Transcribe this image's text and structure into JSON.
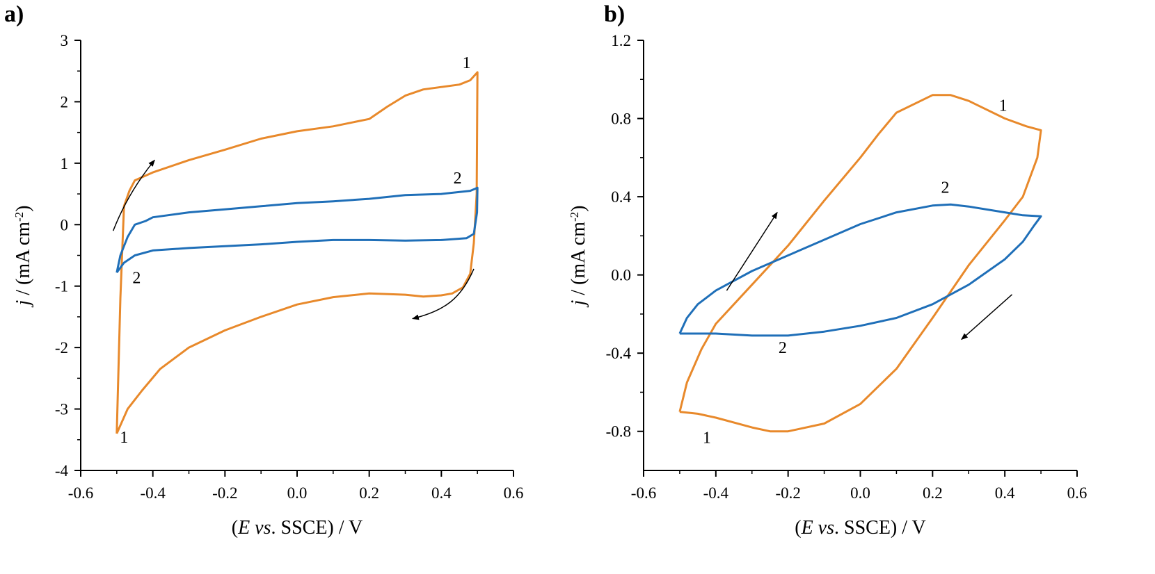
{
  "panels": {
    "a": "a)",
    "b": "b)"
  },
  "chart_data": [
    {
      "type": "line",
      "panel": "a)",
      "xlabel": "(E vs. SSCE) / V",
      "ylabel": "j / (mA cm-2)",
      "xlim": [
        -0.6,
        0.6
      ],
      "ylim": [
        -4,
        3
      ],
      "xticks": [
        -0.6,
        -0.4,
        -0.2,
        0.0,
        0.2,
        0.4,
        0.6
      ],
      "xtick_labels": [
        "-0.6",
        "-0.4",
        "-0.2",
        "0.0",
        "0.2",
        "0.4",
        "0.6"
      ],
      "yticks": [
        -4,
        -3,
        -2,
        -1,
        0,
        1,
        2,
        3
      ],
      "ytick_labels": [
        "-4",
        "-3",
        "-2",
        "-1",
        "0",
        "1",
        "2",
        "3"
      ],
      "grid": false,
      "colors": {
        "1": "#E8892B",
        "2": "#1F6FB8"
      },
      "series": [
        {
          "label": "1",
          "color": "#E8892B",
          "points": [
            [
              -0.5,
              -3.4
            ],
            [
              -0.49,
              -1.2
            ],
            [
              -0.48,
              0.3
            ],
            [
              -0.465,
              0.55
            ],
            [
              -0.45,
              0.72
            ],
            [
              -0.4,
              0.85
            ],
            [
              -0.3,
              1.05
            ],
            [
              -0.2,
              1.22
            ],
            [
              -0.1,
              1.4
            ],
            [
              0.0,
              1.52
            ],
            [
              0.1,
              1.6
            ],
            [
              0.2,
              1.72
            ],
            [
              0.25,
              1.92
            ],
            [
              0.3,
              2.1
            ],
            [
              0.35,
              2.2
            ],
            [
              0.4,
              2.24
            ],
            [
              0.45,
              2.28
            ],
            [
              0.48,
              2.35
            ],
            [
              0.5,
              2.48
            ],
            [
              0.498,
              0.5
            ],
            [
              0.49,
              -0.3
            ],
            [
              0.48,
              -0.8
            ],
            [
              0.46,
              -1.02
            ],
            [
              0.43,
              -1.12
            ],
            [
              0.4,
              -1.15
            ],
            [
              0.35,
              -1.17
            ],
            [
              0.3,
              -1.14
            ],
            [
              0.2,
              -1.12
            ],
            [
              0.1,
              -1.18
            ],
            [
              0.0,
              -1.3
            ],
            [
              -0.1,
              -1.5
            ],
            [
              -0.2,
              -1.72
            ],
            [
              -0.3,
              -2.0
            ],
            [
              -0.38,
              -2.35
            ],
            [
              -0.43,
              -2.7
            ],
            [
              -0.47,
              -3.0
            ],
            [
              -0.5,
              -3.4
            ]
          ]
        },
        {
          "label": "2",
          "color": "#1F6FB8",
          "points": [
            [
              -0.5,
              -0.78
            ],
            [
              -0.49,
              -0.5
            ],
            [
              -0.47,
              -0.2
            ],
            [
              -0.45,
              0.0
            ],
            [
              -0.42,
              0.06
            ],
            [
              -0.4,
              0.12
            ],
            [
              -0.3,
              0.2
            ],
            [
              -0.2,
              0.25
            ],
            [
              -0.1,
              0.3
            ],
            [
              0.0,
              0.35
            ],
            [
              0.1,
              0.38
            ],
            [
              0.2,
              0.42
            ],
            [
              0.3,
              0.48
            ],
            [
              0.4,
              0.5
            ],
            [
              0.48,
              0.55
            ],
            [
              0.5,
              0.6
            ],
            [
              0.499,
              0.2
            ],
            [
              0.49,
              -0.15
            ],
            [
              0.47,
              -0.22
            ],
            [
              0.4,
              -0.25
            ],
            [
              0.3,
              -0.26
            ],
            [
              0.2,
              -0.25
            ],
            [
              0.1,
              -0.25
            ],
            [
              0.0,
              -0.28
            ],
            [
              -0.1,
              -0.32
            ],
            [
              -0.2,
              -0.35
            ],
            [
              -0.3,
              -0.38
            ],
            [
              -0.4,
              -0.42
            ],
            [
              -0.45,
              -0.5
            ],
            [
              -0.48,
              -0.62
            ],
            [
              -0.5,
              -0.78
            ]
          ]
        }
      ],
      "annotations": [
        {
          "text": "1",
          "x": 0.47,
          "y": 2.55
        },
        {
          "text": "1",
          "x": -0.48,
          "y": -3.55
        },
        {
          "text": "2",
          "x": 0.445,
          "y": 0.67
        },
        {
          "text": "2",
          "x": -0.445,
          "y": -0.95
        }
      ],
      "arrows": [
        {
          "path": [
            [
              -0.51,
              -0.1
            ],
            [
              -0.48,
              0.35
            ],
            [
              -0.44,
              0.73
            ],
            [
              -0.395,
              1.05
            ]
          ]
        },
        {
          "path": [
            [
              0.49,
              -0.72
            ],
            [
              0.455,
              -1.2
            ],
            [
              0.41,
              -1.4
            ],
            [
              0.32,
              -1.53
            ]
          ]
        }
      ]
    },
    {
      "type": "line",
      "panel": "b)",
      "xlabel": "(E vs. SSCE) / V",
      "ylabel": "j / (mA cm-2)",
      "xlim": [
        -0.6,
        0.6
      ],
      "ylim": [
        -1.0,
        1.2
      ],
      "xticks": [
        -0.6,
        -0.4,
        -0.2,
        0.0,
        0.2,
        0.4,
        0.6
      ],
      "xtick_labels": [
        "-0.6",
        "-0.4",
        "-0.2",
        "0.0",
        "0.2",
        "0.4",
        "0.6"
      ],
      "yticks": [
        -0.8,
        -0.4,
        0.0,
        0.4,
        0.8,
        1.2
      ],
      "ytick_labels": [
        "-0.8",
        "-0.4",
        "0.0",
        "0.4",
        "0.8",
        "1.2"
      ],
      "grid": false,
      "colors": {
        "1": "#E8892B",
        "2": "#1F6FB8"
      },
      "series": [
        {
          "label": "1",
          "color": "#E8892B",
          "points": [
            [
              -0.5,
              -0.7
            ],
            [
              -0.48,
              -0.55
            ],
            [
              -0.44,
              -0.38
            ],
            [
              -0.4,
              -0.25
            ],
            [
              -0.3,
              -0.05
            ],
            [
              -0.2,
              0.15
            ],
            [
              -0.1,
              0.38
            ],
            [
              0.0,
              0.6
            ],
            [
              0.05,
              0.72
            ],
            [
              0.1,
              0.83
            ],
            [
              0.2,
              0.92
            ],
            [
              0.25,
              0.92
            ],
            [
              0.3,
              0.89
            ],
            [
              0.4,
              0.8
            ],
            [
              0.46,
              0.76
            ],
            [
              0.5,
              0.74
            ],
            [
              0.49,
              0.6
            ],
            [
              0.45,
              0.4
            ],
            [
              0.4,
              0.28
            ],
            [
              0.3,
              0.05
            ],
            [
              0.2,
              -0.22
            ],
            [
              0.1,
              -0.48
            ],
            [
              0.0,
              -0.66
            ],
            [
              -0.1,
              -0.76
            ],
            [
              -0.2,
              -0.8
            ],
            [
              -0.25,
              -0.8
            ],
            [
              -0.3,
              -0.78
            ],
            [
              -0.4,
              -0.73
            ],
            [
              -0.45,
              -0.71
            ],
            [
              -0.5,
              -0.7
            ]
          ]
        },
        {
          "label": "2",
          "color": "#1F6FB8",
          "points": [
            [
              -0.5,
              -0.3
            ],
            [
              -0.48,
              -0.22
            ],
            [
              -0.45,
              -0.15
            ],
            [
              -0.4,
              -0.08
            ],
            [
              -0.3,
              0.02
            ],
            [
              -0.2,
              0.1
            ],
            [
              -0.1,
              0.18
            ],
            [
              0.0,
              0.26
            ],
            [
              0.1,
              0.32
            ],
            [
              0.2,
              0.355
            ],
            [
              0.25,
              0.36
            ],
            [
              0.3,
              0.35
            ],
            [
              0.4,
              0.32
            ],
            [
              0.45,
              0.305
            ],
            [
              0.5,
              0.3
            ],
            [
              0.48,
              0.25
            ],
            [
              0.45,
              0.17
            ],
            [
              0.4,
              0.08
            ],
            [
              0.3,
              -0.05
            ],
            [
              0.2,
              -0.15
            ],
            [
              0.1,
              -0.22
            ],
            [
              0.0,
              -0.26
            ],
            [
              -0.1,
              -0.29
            ],
            [
              -0.2,
              -0.31
            ],
            [
              -0.3,
              -0.31
            ],
            [
              -0.4,
              -0.3
            ],
            [
              -0.5,
              -0.3
            ]
          ]
        }
      ],
      "annotations": [
        {
          "text": "1",
          "x": 0.395,
          "y": 0.84
        },
        {
          "text": "1",
          "x": -0.425,
          "y": -0.86
        },
        {
          "text": "2",
          "x": 0.235,
          "y": 0.42
        },
        {
          "text": "2",
          "x": -0.215,
          "y": -0.4
        }
      ],
      "arrows": [
        {
          "path": [
            [
              -0.37,
              -0.08
            ],
            [
              -0.23,
              0.32
            ]
          ]
        },
        {
          "path": [
            [
              0.42,
              -0.1
            ],
            [
              0.28,
              -0.33
            ]
          ]
        }
      ]
    }
  ]
}
